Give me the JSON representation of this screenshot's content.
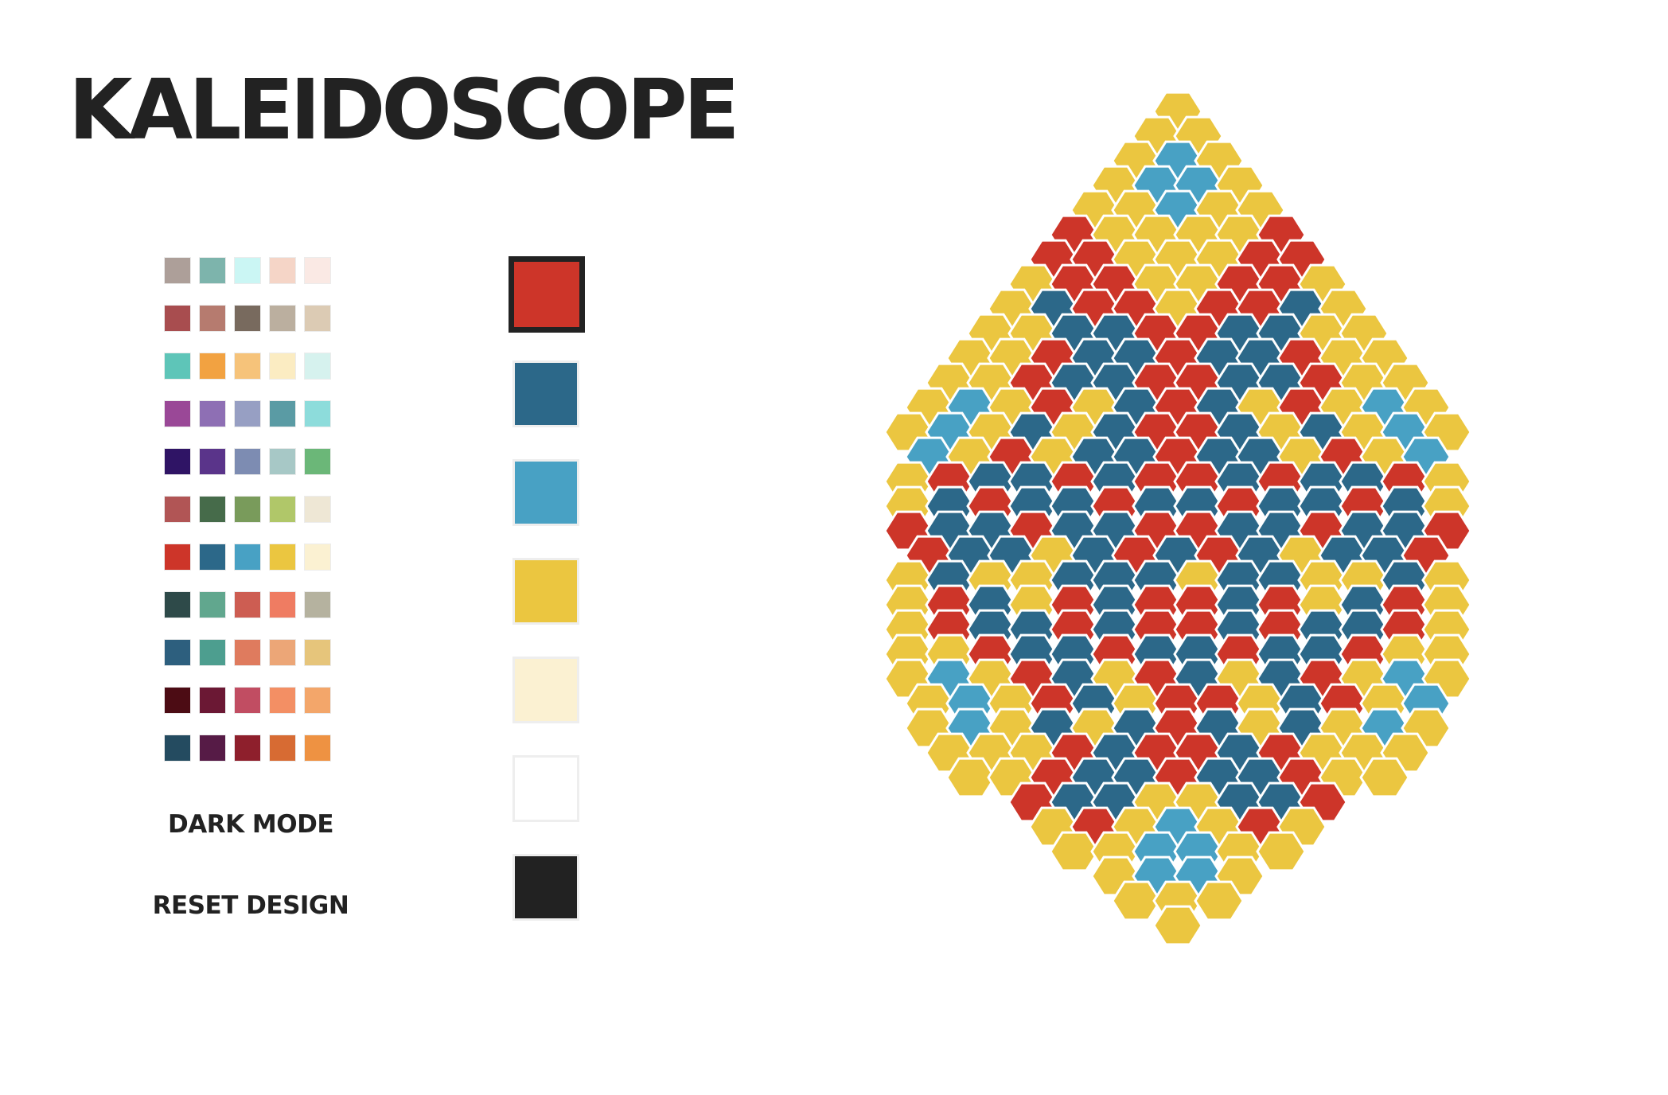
{
  "app": {
    "title": "KALEIDOSCOPE"
  },
  "palettes": [
    [
      "#ad9f99",
      "#7db4ac",
      "#cbf6f4",
      "#f5d5c7",
      "#fae9e4"
    ],
    [
      "#a84d4f",
      "#b67b6f",
      "#786a5e",
      "#bbaf9f",
      "#dccbb4"
    ],
    [
      "#5ec5b8",
      "#f2a241",
      "#f6c37a",
      "#fbecc2",
      "#d6f2ee"
    ],
    [
      "#9a4897",
      "#8e6fb4",
      "#979fc3",
      "#5a9ba4",
      "#8ddcdb"
    ],
    [
      "#2f1465",
      "#5a348a",
      "#7d8cb2",
      "#a7c8c6",
      "#6bb778"
    ],
    [
      "#b15555",
      "#466b4a",
      "#799b5b",
      "#b0c769",
      "#eee7d5"
    ],
    [
      "#cd3529",
      "#2c6889",
      "#48a1c4",
      "#ebc640",
      "#fbf1d2"
    ],
    [
      "#2e4a49",
      "#61a78e",
      "#cd5d52",
      "#ef7c62",
      "#b5b29f"
    ],
    [
      "#2d5f7e",
      "#4d9e8f",
      "#df7b5e",
      "#eca677",
      "#e6c57b"
    ],
    [
      "#4c0c14",
      "#6b1834",
      "#c14d62",
      "#f38f64",
      "#f3a66a"
    ],
    [
      "#244b60",
      "#561b46",
      "#8e1f2c",
      "#d76b33",
      "#ee9242"
    ]
  ],
  "current_colors": [
    {
      "name": "red",
      "hex": "#cd3529",
      "selected": true
    },
    {
      "name": "dark-blue",
      "hex": "#2c6889",
      "selected": false
    },
    {
      "name": "light-blue",
      "hex": "#48a1c4",
      "selected": false
    },
    {
      "name": "yellow",
      "hex": "#ebc640",
      "selected": false
    },
    {
      "name": "cream",
      "hex": "#fbf1d2",
      "selected": false
    },
    {
      "name": "white",
      "hex": "#ffffff",
      "selected": false
    },
    {
      "name": "black",
      "hex": "#222222",
      "selected": false
    }
  ],
  "controls": {
    "dark_mode_label": "DARK MODE",
    "reset_label": "RESET DESIGN"
  },
  "board": {
    "cell_color_index_legend": [
      "#cd3529",
      "#2c6889",
      "#48a1c4",
      "#ebc640"
    ],
    "rows": [
      [
        3
      ],
      [
        3,
        3
      ],
      [
        3,
        2,
        3
      ],
      [
        3,
        2,
        2,
        3
      ],
      [
        3,
        3,
        2,
        3,
        3
      ],
      [
        0,
        3,
        3,
        3,
        3,
        0
      ],
      [
        0,
        0,
        3,
        3,
        3,
        0,
        0
      ],
      [
        3,
        0,
        0,
        3,
        3,
        0,
        0,
        3
      ],
      [
        3,
        1,
        0,
        0,
        3,
        0,
        0,
        1,
        3
      ],
      [
        3,
        3,
        1,
        1,
        0,
        0,
        1,
        1,
        3,
        3
      ],
      [
        3,
        3,
        0,
        1,
        1,
        0,
        1,
        1,
        0,
        3,
        3
      ],
      [
        3,
        3,
        0,
        1,
        1,
        0,
        0,
        1,
        1,
        0,
        3,
        3
      ],
      [
        3,
        2,
        3,
        0,
        3,
        1,
        0,
        1,
        3,
        0,
        3,
        2,
        3
      ],
      [
        3,
        2,
        3,
        1,
        3,
        1,
        0,
        0,
        1,
        3,
        1,
        3,
        2,
        3
      ],
      [
        2,
        3,
        0,
        3,
        1,
        1,
        0,
        1,
        1,
        3,
        0,
        3,
        2
      ],
      [
        3,
        0,
        1,
        1,
        0,
        1,
        0,
        0,
        1,
        0,
        1,
        1,
        0,
        3
      ],
      [
        3,
        1,
        0,
        1,
        1,
        0,
        1,
        1,
        0,
        1,
        1,
        0,
        1,
        3
      ],
      [
        0,
        1,
        1,
        0,
        1,
        1,
        0,
        0,
        1,
        1,
        0,
        1,
        1,
        0
      ],
      [
        0,
        1,
        1,
        3,
        1,
        0,
        1,
        0,
        1,
        3,
        1,
        1,
        0
      ],
      [
        3,
        1,
        3,
        3,
        1,
        1,
        1,
        3,
        1,
        1,
        3,
        3,
        1,
        3
      ],
      [
        3,
        0,
        1,
        3,
        0,
        1,
        0,
        0,
        1,
        0,
        3,
        1,
        0,
        3
      ],
      [
        3,
        0,
        1,
        1,
        0,
        1,
        0,
        0,
        1,
        0,
        1,
        1,
        0,
        3
      ],
      [
        3,
        3,
        0,
        1,
        1,
        0,
        1,
        1,
        0,
        1,
        1,
        0,
        3,
        3
      ],
      [
        3,
        2,
        3,
        0,
        1,
        3,
        0,
        1,
        3,
        1,
        0,
        3,
        2,
        3
      ],
      [
        3,
        2,
        3,
        0,
        1,
        3,
        0,
        0,
        3,
        1,
        0,
        3,
        2
      ],
      [
        3,
        2,
        3,
        1,
        3,
        1,
        0,
        1,
        3,
        1,
        3,
        2,
        3
      ],
      [
        3,
        3,
        3,
        0,
        1,
        0,
        0,
        1,
        0,
        3,
        3,
        3
      ],
      [
        3,
        3,
        0,
        1,
        1,
        0,
        1,
        1,
        0,
        3,
        3
      ],
      [
        0,
        1,
        1,
        3,
        3,
        1,
        1,
        0
      ],
      [
        3,
        0,
        3,
        2,
        3,
        0,
        3
      ],
      [
        3,
        3,
        2,
        2,
        3,
        3
      ],
      [
        3,
        2,
        2,
        3
      ],
      [
        3,
        3,
        3
      ],
      [
        3
      ]
    ]
  }
}
